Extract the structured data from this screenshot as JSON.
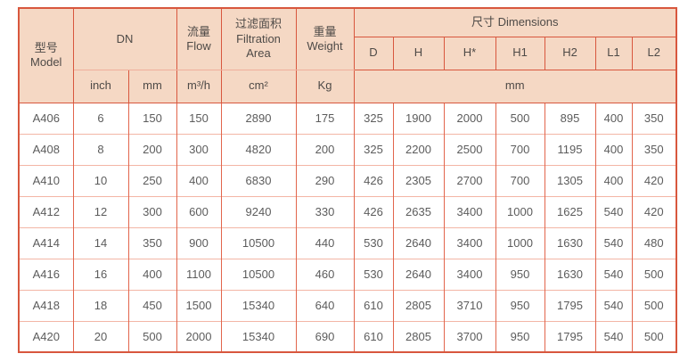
{
  "table": {
    "header": {
      "model": "型号\nModel",
      "dn": "DN",
      "flow": "流量\nFlow",
      "filtration_area": "过滤面积\nFiltration\nArea",
      "weight": "重量\nWeight",
      "dimensions": "尺寸 Dimensions",
      "dim_columns": [
        "D",
        "H",
        "H*",
        "H1",
        "H2",
        "L1",
        "L2"
      ],
      "units": {
        "dn_inch": "inch",
        "dn_mm": "mm",
        "flow": "m³/h",
        "filtration_area": "cm²",
        "weight": "Kg",
        "dimensions": "mm"
      }
    },
    "column_keys": [
      "model",
      "dn-inch",
      "dn-mm",
      "flow",
      "filtration-area",
      "weight",
      "d",
      "h",
      "h-star",
      "h1",
      "h2",
      "l1",
      "l2"
    ],
    "rows": [
      [
        "A406",
        "6",
        "150",
        "150",
        "2890",
        "175",
        "325",
        "1900",
        "2000",
        "500",
        "895",
        "400",
        "350"
      ],
      [
        "A408",
        "8",
        "200",
        "300",
        "4820",
        "200",
        "325",
        "2200",
        "2500",
        "700",
        "1195",
        "400",
        "350"
      ],
      [
        "A410",
        "10",
        "250",
        "400",
        "6830",
        "290",
        "426",
        "2305",
        "2700",
        "700",
        "1305",
        "400",
        "420"
      ],
      [
        "A412",
        "12",
        "300",
        "600",
        "9240",
        "330",
        "426",
        "2635",
        "3400",
        "1000",
        "1625",
        "540",
        "420"
      ],
      [
        "A414",
        "14",
        "350",
        "900",
        "10500",
        "440",
        "530",
        "2640",
        "3400",
        "1000",
        "1630",
        "540",
        "480"
      ],
      [
        "A416",
        "16",
        "400",
        "1100",
        "10500",
        "460",
        "530",
        "2640",
        "3400",
        "950",
        "1630",
        "540",
        "500"
      ],
      [
        "A418",
        "18",
        "450",
        "1500",
        "15340",
        "640",
        "610",
        "2805",
        "3710",
        "950",
        "1795",
        "540",
        "500"
      ],
      [
        "A420",
        "20",
        "500",
        "2000",
        "15340",
        "690",
        "610",
        "2805",
        "3700",
        "950",
        "1795",
        "540",
        "500"
      ]
    ]
  },
  "colors": {
    "border_main": "#d8573e",
    "border_soft": "#efae9b",
    "body_vertical": "#e2654c",
    "body_horizontal": "#f3b6a6",
    "header_background": "#f5d8c4",
    "header_text": "#4e4a47",
    "body_text": "#5c5c5c"
  }
}
